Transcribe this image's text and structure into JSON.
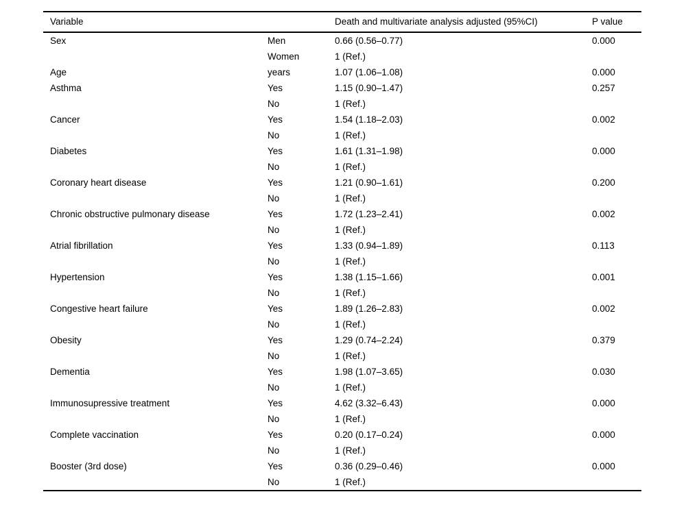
{
  "table": {
    "columns": [
      "Variable",
      "",
      "Death and multivariate analysis adjusted (95%CI)",
      "P value"
    ],
    "rows": [
      [
        "Sex",
        "Men",
        "0.66 (0.56–0.77)",
        "0.000"
      ],
      [
        "",
        "Women",
        "1 (Ref.)",
        ""
      ],
      [
        "Age",
        "years",
        "1.07 (1.06–1.08)",
        "0.000"
      ],
      [
        "Asthma",
        "Yes",
        "1.15 (0.90–1.47)",
        "0.257"
      ],
      [
        "",
        "No",
        "1 (Ref.)",
        ""
      ],
      [
        "Cancer",
        "Yes",
        "1.54 (1.18–2.03)",
        "0.002"
      ],
      [
        "",
        "No",
        "1 (Ref.)",
        ""
      ],
      [
        "Diabetes",
        "Yes",
        "1.61 (1.31–1.98)",
        "0.000"
      ],
      [
        "",
        "No",
        "1 (Ref.)",
        ""
      ],
      [
        "Coronary heart disease",
        "Yes",
        "1.21 (0.90–1.61)",
        "0.200"
      ],
      [
        "",
        "No",
        "1 (Ref.)",
        ""
      ],
      [
        "Chronic obstructive pulmonary disease",
        "Yes",
        "1.72 (1.23–2.41)",
        "0.002"
      ],
      [
        "",
        "No",
        "1 (Ref.)",
        ""
      ],
      [
        "Atrial fibrillation",
        "Yes",
        "1.33 (0.94–1.89)",
        "0.113"
      ],
      [
        "",
        "No",
        "1 (Ref.)",
        ""
      ],
      [
        "Hypertension",
        "Yes",
        "1.38 (1.15–1.66)",
        "0.001"
      ],
      [
        "",
        "No",
        "1 (Ref.)",
        ""
      ],
      [
        "Congestive heart failure",
        "Yes",
        "1.89 (1.26–2.83)",
        "0.002"
      ],
      [
        "",
        "No",
        "1 (Ref.)",
        ""
      ],
      [
        "Obesity",
        "Yes",
        "1.29 (0.74–2.24)",
        "0.379"
      ],
      [
        "",
        "No",
        "1 (Ref.)",
        ""
      ],
      [
        "Dementia",
        "Yes",
        "1.98 (1.07–3.65)",
        "0.030"
      ],
      [
        "",
        "No",
        "1 (Ref.)",
        ""
      ],
      [
        "Immunosupressive treatment",
        "Yes",
        "4.62 (3.32–6.43)",
        "0.000"
      ],
      [
        "",
        "No",
        "1 (Ref.)",
        ""
      ],
      [
        "Complete vaccination",
        "Yes",
        "0.20 (0.17–0.24)",
        "0.000"
      ],
      [
        "",
        "No",
        "1 (Ref.)",
        ""
      ],
      [
        "Booster (3rd dose)",
        "Yes",
        "0.36 (0.29–0.46)",
        "0.000"
      ],
      [
        "",
        "No",
        "1 (Ref.)",
        ""
      ]
    ]
  }
}
